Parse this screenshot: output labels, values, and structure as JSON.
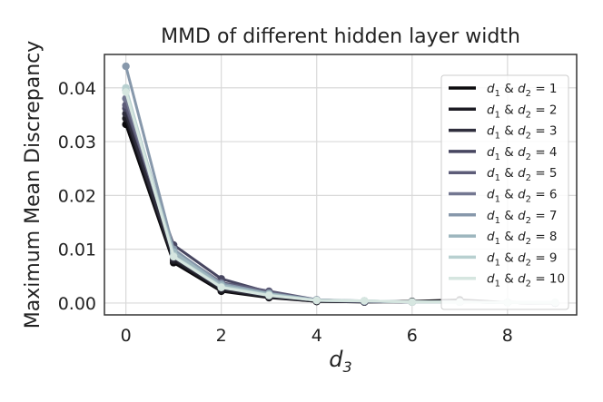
{
  "chart_data": {
    "type": "line",
    "title": "MMD of different hidden layer width",
    "ylabel": "Maximum Mean Discrepancy",
    "xlabel": "d3",
    "xlabel_base": "d",
    "xlabel_sub": "3",
    "xlim": [
      -0.45,
      9.45
    ],
    "ylim": [
      -0.0022,
      0.0462
    ],
    "xticks": [
      0,
      2,
      4,
      6,
      8
    ],
    "yticks": [
      0.0,
      0.01,
      0.02,
      0.03,
      0.04
    ],
    "xtick_labels": [
      "0",
      "2",
      "4",
      "6",
      "8"
    ],
    "ytick_labels": [
      "0.00",
      "0.01",
      "0.02",
      "0.03",
      "0.04"
    ],
    "grid": true,
    "legend_position": "right",
    "legend_label_base": "d",
    "legend_label_sub1": "1",
    "legend_label_sub2": "2",
    "legend_label_join": " & ",
    "legend_label_eq": " = ",
    "x": [
      0,
      1,
      2,
      3,
      4,
      5,
      6,
      7,
      8,
      9
    ],
    "series": [
      {
        "name": "1",
        "color": "#0b0a0d",
        "values": [
          0.0332,
          0.0075,
          0.0022,
          0.001,
          0.0003,
          0.0002,
          0.0003,
          0.0006,
          0.0001,
          0.0
        ]
      },
      {
        "name": "2",
        "color": "#1d1c24",
        "values": [
          0.0343,
          0.0079,
          0.0024,
          0.0011,
          0.0003,
          0.0002,
          0.0003,
          0.0004,
          0.0001,
          0.0
        ]
      },
      {
        "name": "3",
        "color": "#2f2e3d",
        "values": [
          0.0352,
          0.0083,
          0.0027,
          0.0012,
          0.0004,
          0.0002,
          0.0002,
          0.0003,
          0.0001,
          0.0
        ]
      },
      {
        "name": "4",
        "color": "#474660",
        "values": [
          0.0362,
          0.0108,
          0.0045,
          0.002,
          0.0006,
          0.0003,
          0.0002,
          0.0002,
          0.0001,
          0.0
        ]
      },
      {
        "name": "5",
        "color": "#5d5c78",
        "values": [
          0.0368,
          0.0098,
          0.0038,
          0.0022,
          0.0006,
          0.0003,
          0.0002,
          0.0002,
          0.0001,
          0.0
        ]
      },
      {
        "name": "6",
        "color": "#737791",
        "values": [
          0.038,
          0.0092,
          0.0034,
          0.0016,
          0.0005,
          0.0003,
          0.0002,
          0.0002,
          0.0001,
          0.0
        ]
      },
      {
        "name": "7",
        "color": "#8798ab",
        "values": [
          0.044,
          0.01,
          0.0036,
          0.0018,
          0.0006,
          0.0004,
          0.0002,
          0.0002,
          0.0001,
          0.0
        ]
      },
      {
        "name": "8",
        "color": "#9db6be",
        "values": [
          0.0395,
          0.0095,
          0.0033,
          0.0017,
          0.0005,
          0.0004,
          0.0002,
          0.0002,
          0.0001,
          0.0001
        ]
      },
      {
        "name": "9",
        "color": "#b8d0d0",
        "values": [
          0.04,
          0.0088,
          0.003,
          0.0015,
          0.0005,
          0.0004,
          0.0002,
          0.0002,
          0.0001,
          0.0001
        ]
      },
      {
        "name": "10",
        "color": "#d6e6e0",
        "values": [
          0.0392,
          0.0086,
          0.0029,
          0.0014,
          0.0005,
          0.0004,
          0.0002,
          0.0002,
          0.0001,
          0.0001
        ]
      }
    ]
  }
}
